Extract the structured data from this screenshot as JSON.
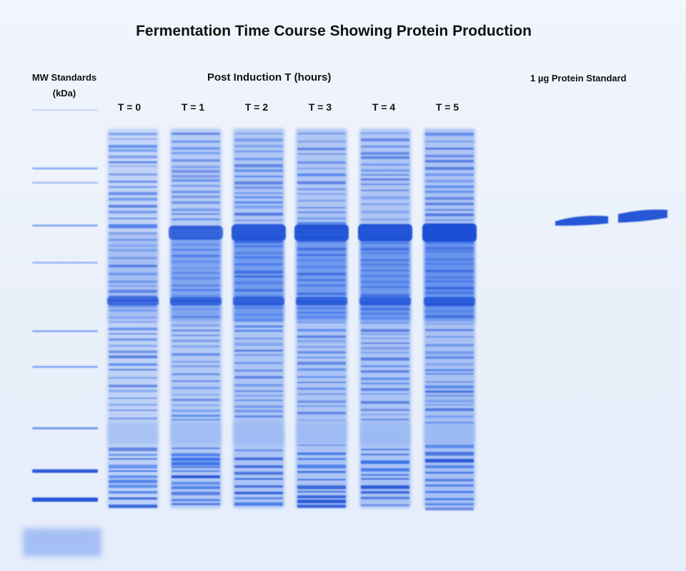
{
  "figure": {
    "title": "Fermentation Time Course Showing Protein Production",
    "mw_standards_label_line1": "MW Standards",
    "mw_standards_label_line2": "(kDa)",
    "post_induction_label": "Post Induction T (hours)",
    "protein_standard_label": "1 µg Protein Standard"
  },
  "lanes": [
    {
      "label": "T = 0",
      "induction": 0.0
    },
    {
      "label": "T = 1",
      "induction": 0.55
    },
    {
      "label": "T = 2",
      "induction": 0.8
    },
    {
      "label": "T = 3",
      "induction": 0.82
    },
    {
      "label": "T = 4",
      "induction": 0.88
    },
    {
      "label": "T = 5",
      "induction": 1.0
    }
  ],
  "colors": {
    "stain_dark": "#1a4fd6",
    "stain_mid": "#2f6be8",
    "stain_light": "#8fb2f3",
    "gel_background": "#eef3fb"
  }
}
